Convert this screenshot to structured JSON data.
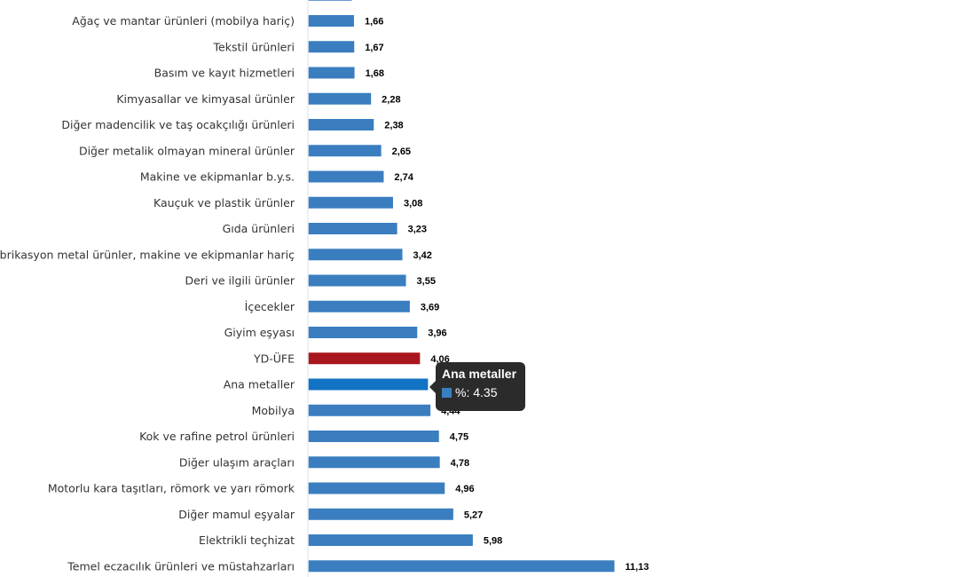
{
  "chart_data": {
    "type": "bar",
    "orientation": "horizontal",
    "title": "",
    "xlabel": "",
    "ylabel": "",
    "unit": "%",
    "xlim": [
      0,
      11.13
    ],
    "grid": false,
    "legend": "none",
    "categories": [
      "Ağaç ve mantar ürünleri (mobilya hariç)",
      "Tekstil ürünleri",
      "Basım ve kayıt hizmetleri",
      "Kimyasallar ve kimyasal ürünler",
      "Diğer madencilik ve taş ocakçılığı ürünleri",
      "Diğer metalik olmayan mineral ürünler",
      "Makine ve ekipmanlar b.y.s.",
      "Kauçuk ve plastik ürünler",
      "Gıda ürünleri",
      "Fabrikasyon metal ürünler, makine ve ekipmanlar hariç",
      "Deri ve ilgili ürünler",
      "İçecekler",
      "Giyim eşyası",
      "YD-ÜFE",
      "Ana metaller",
      "Mobilya",
      "Kok ve rafine petrol ürünleri",
      "Diğer ulaşım araçları",
      "Motorlu kara taşıtları, römork ve yarı römork",
      "Diğer mamul eşyalar",
      "Elektrikli teçhizat",
      "Temel eczacılık ürünleri ve müstahzarları"
    ],
    "values": [
      1.66,
      1.67,
      1.68,
      2.28,
      2.38,
      2.65,
      2.74,
      3.08,
      3.23,
      3.42,
      3.55,
      3.69,
      3.96,
      4.06,
      4.35,
      4.44,
      4.75,
      4.78,
      4.96,
      5.27,
      5.98,
      11.13
    ],
    "value_labels": [
      "1,66",
      "1,67",
      "1,68",
      "2,28",
      "2,38",
      "2,65",
      "2,74",
      "3,08",
      "3,23",
      "3,42",
      "3,55",
      "3,69",
      "3,96",
      "4,06",
      "4,35",
      "4,44",
      "4,75",
      "4,78",
      "4,96",
      "5,27",
      "5,98",
      "11,13"
    ],
    "partially_visible_top_bar_value": 1.58,
    "colors": {
      "default": "#3a7ec0",
      "highlight": "#a8171d",
      "hovered": "#1272c4",
      "axis": "#e6ecf3"
    },
    "highlight_category": "YD-ÜFE",
    "hovered_category": "Ana metaller"
  },
  "tooltip": {
    "title": "Ana metaller",
    "series_label": "%",
    "value_text": "4.35",
    "color": "#3a7ec0"
  }
}
